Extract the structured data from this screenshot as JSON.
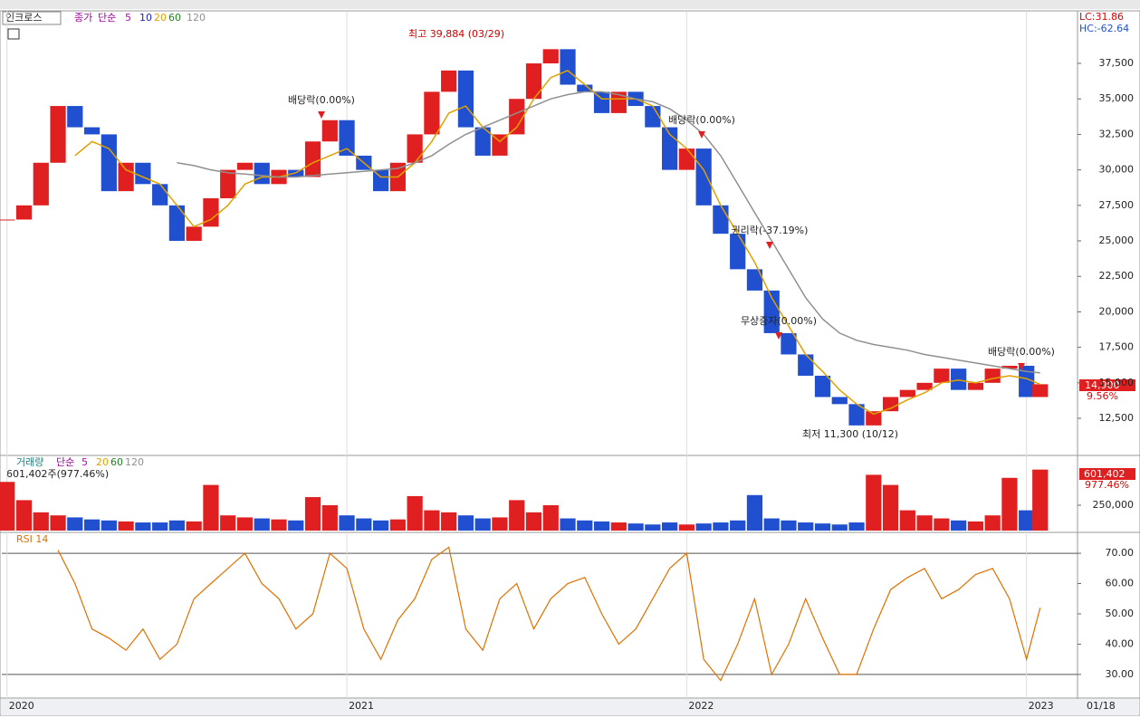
{
  "chart_data": [
    {
      "type": "candlestick",
      "name": "인크로스",
      "indicator": "종가",
      "method": "단순",
      "legend": [
        {
          "label": "5",
          "color": "#c000c0"
        },
        {
          "label": "10",
          "color": "#2020c0"
        },
        {
          "label": "20",
          "color": "#e0a000"
        },
        {
          "label": "60",
          "color": "#208020"
        },
        {
          "label": "120",
          "color": "#909090"
        }
      ],
      "x": [
        2020.0,
        2020.05,
        2020.1,
        2020.15,
        2020.2,
        2020.25,
        2020.3,
        2020.35,
        2020.4,
        2020.45,
        2020.5,
        2020.55,
        2020.6,
        2020.65,
        2020.7,
        2020.75,
        2020.8,
        2020.85,
        2020.9,
        2020.95,
        2021.0,
        2021.05,
        2021.1,
        2021.15,
        2021.2,
        2021.25,
        2021.3,
        2021.35,
        2021.4,
        2021.45,
        2021.5,
        2021.55,
        2021.6,
        2021.65,
        2021.7,
        2021.75,
        2021.8,
        2021.85,
        2021.9,
        2021.95,
        2022.0,
        2022.05,
        2022.1,
        2022.15,
        2022.2,
        2022.25,
        2022.3,
        2022.35,
        2022.4,
        2022.45,
        2022.5,
        2022.55,
        2022.6,
        2022.65,
        2022.7,
        2022.75,
        2022.8,
        2022.85,
        2022.9,
        2022.95,
        2023.0,
        2023.04
      ],
      "close": [
        26500,
        27500,
        30500,
        34500,
        33000,
        32500,
        28500,
        30500,
        29000,
        27500,
        25000,
        26000,
        28000,
        30000,
        30500,
        29000,
        30000,
        29500,
        32000,
        33500,
        31000,
        30000,
        28500,
        30500,
        32500,
        35500,
        37000,
        33000,
        31000,
        32500,
        35000,
        37500,
        38500,
        36000,
        35500,
        34000,
        35500,
        34500,
        33000,
        30000,
        31500,
        27500,
        25500,
        23000,
        21500,
        18500,
        17000,
        15500,
        14000,
        13500,
        12000,
        13000,
        14000,
        14500,
        15000,
        16000,
        14500,
        15000,
        16000,
        16200,
        14000,
        14900
      ],
      "up_color": "#e02020",
      "down_color": "#2050d0",
      "series": [
        {
          "color": "#e0a000",
          "values": [
            null,
            null,
            null,
            null,
            31000,
            32000,
            31500,
            30000,
            29500,
            29000,
            27500,
            26000,
            26500,
            27500,
            29000,
            29500,
            29500,
            29800,
            30500,
            31000,
            31500,
            30500,
            29500,
            29500,
            30500,
            32000,
            34000,
            34500,
            33000,
            32000,
            33000,
            35000,
            36500,
            37000,
            36000,
            35000,
            35000,
            35000,
            34500,
            32500,
            31500,
            30000,
            27500,
            25500,
            23500,
            21000,
            19000,
            17000,
            15800,
            14500,
            13500,
            12800,
            13200,
            13800,
            14300,
            15000,
            15200,
            15000,
            15300,
            15500,
            15300,
            14900
          ]
        },
        {
          "color": "#909090",
          "values": [
            null,
            null,
            null,
            null,
            null,
            null,
            null,
            null,
            null,
            null,
            30500,
            30300,
            30000,
            29800,
            29700,
            29600,
            29500,
            29500,
            29600,
            29700,
            29800,
            29900,
            30000,
            30100,
            30500,
            31000,
            31800,
            32500,
            33000,
            33500,
            34000,
            34500,
            35000,
            35300,
            35500,
            35500,
            35300,
            35000,
            34800,
            34300,
            33500,
            32500,
            31000,
            29000,
            27000,
            25000,
            23000,
            21000,
            19500,
            18500,
            18000,
            17700,
            17500,
            17300,
            17000,
            16800,
            16600,
            16400,
            16200,
            16000,
            15800,
            15700
          ]
        }
      ],
      "xlim": [
        2019.99,
        2023.15
      ],
      "ylim": [
        9950,
        41200
      ],
      "yticks": [
        {
          "value": 12500,
          "label": "12,500"
        },
        {
          "value": 15000,
          "label": "15,000"
        },
        {
          "value": 17500,
          "label": "17,500"
        },
        {
          "value": 20000,
          "label": "20,000"
        },
        {
          "value": 22500,
          "label": "22,500"
        },
        {
          "value": 25000,
          "label": "25,000"
        },
        {
          "value": 27500,
          "label": "27,500"
        },
        {
          "value": 30000,
          "label": "30,000"
        },
        {
          "value": 32500,
          "label": "32,500"
        },
        {
          "value": 35000,
          "label": "35,000"
        },
        {
          "value": 37500,
          "label": "37,500"
        }
      ],
      "annotations": [
        "최고 39,884 (03/29)",
        "배당락(0.00%)",
        "배당락(0.00%)",
        "권리락(-37.19%)",
        "무상증자(0.00%)",
        "배당락(0.00%)",
        "최저 11,300 (10/12)"
      ],
      "lc": "LC:31.86",
      "hc": "HC:-62.64",
      "last_price": "14,900",
      "last_change": "9.56%"
    },
    {
      "type": "bar",
      "name": "거래량",
      "method": "단순",
      "legend": [
        {
          "label": "5",
          "color": "#c000c0"
        },
        {
          "label": "20",
          "color": "#e0a000"
        },
        {
          "label": "60",
          "color": "#208020"
        },
        {
          "label": "120",
          "color": "#909090"
        }
      ],
      "info": "601,402주(977.46%)",
      "values": [
        480000,
        300000,
        180000,
        150000,
        130000,
        110000,
        100000,
        90000,
        80000,
        80000,
        100000,
        90000,
        450000,
        150000,
        130000,
        120000,
        110000,
        100000,
        330000,
        250000,
        150000,
        120000,
        100000,
        110000,
        340000,
        200000,
        180000,
        150000,
        120000,
        130000,
        300000,
        180000,
        250000,
        120000,
        100000,
        90000,
        80000,
        70000,
        60000,
        80000,
        60000,
        70000,
        80000,
        100000,
        350000,
        120000,
        100000,
        80000,
        70000,
        60000,
        80000,
        550000,
        450000,
        200000,
        150000,
        120000,
        100000,
        90000,
        150000,
        520000,
        200000,
        601402
      ],
      "ylim": [
        0,
        732000
      ],
      "yticks": [
        {
          "value": 250000,
          "label": "250,000"
        }
      ],
      "last_volume": "601,402",
      "last_ratio": "977.46%"
    },
    {
      "type": "line",
      "name": "RSI 14",
      "color": "#e07000",
      "values": [
        null,
        null,
        null,
        71,
        60,
        45,
        42,
        38,
        45,
        35,
        40,
        55,
        60,
        65,
        70,
        60,
        55,
        45,
        50,
        70,
        65,
        45,
        35,
        48,
        55,
        68,
        72,
        45,
        38,
        55,
        60,
        45,
        55,
        60,
        62,
        50,
        40,
        45,
        55,
        65,
        70,
        35,
        28,
        40,
        55,
        30,
        40,
        55,
        42,
        30,
        30,
        45,
        58,
        62,
        65,
        55,
        58,
        63,
        65,
        55,
        35,
        52
      ],
      "ylim": [
        22.5,
        76.3
      ],
      "yticks": [
        {
          "value": 30,
          "label": "30.00"
        },
        {
          "value": 40,
          "label": "40.00"
        },
        {
          "value": 50,
          "label": "50.00"
        },
        {
          "value": 60,
          "label": "60.00"
        },
        {
          "value": 70,
          "label": "70.00"
        }
      ],
      "xticks": [
        2020,
        2021,
        2022,
        2023
      ],
      "date_label": "01/18"
    }
  ]
}
